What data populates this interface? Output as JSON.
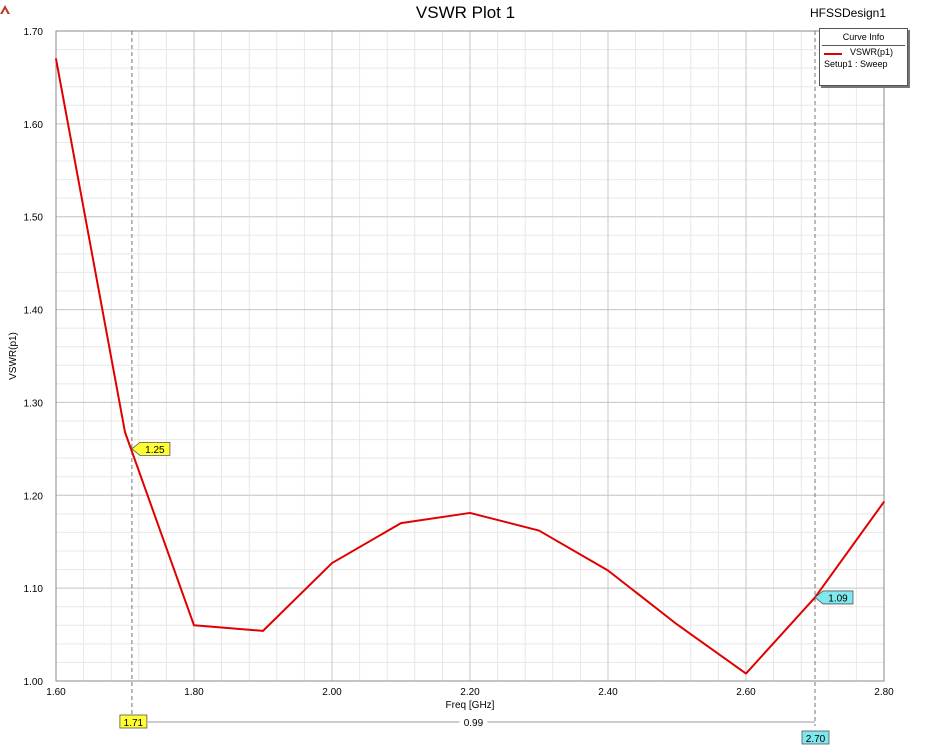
{
  "window": {
    "design_name": "HFSSDesign1",
    "logo_icon": "ansys-triangle-icon"
  },
  "legend": {
    "title": "Curve Info",
    "series_label": "VSWR(p1)",
    "setup_label": "Setup1 : Sweep",
    "series_color": "#e00000"
  },
  "chart_data": {
    "type": "line",
    "title": "VSWR Plot 1",
    "xlabel": "Freq [GHz]",
    "ylabel": "VSWR(p1)",
    "xlim": [
      1.6,
      2.8
    ],
    "ylim": [
      1.0,
      1.7
    ],
    "x_ticks": [
      "1.60",
      "1.80",
      "2.00",
      "2.20",
      "2.40",
      "2.60",
      "2.80"
    ],
    "y_ticks": [
      "1.00",
      "1.10",
      "1.20",
      "1.30",
      "1.40",
      "1.50",
      "1.60",
      "1.70"
    ],
    "grid": true,
    "legend_position": "top-right",
    "series": [
      {
        "name": "VSWR(p1)",
        "color": "#e00000",
        "x": [
          1.6,
          1.7,
          1.8,
          1.9,
          2.0,
          2.1,
          2.2,
          2.3,
          2.4,
          2.5,
          2.6,
          2.7,
          2.8
        ],
        "y": [
          1.67,
          1.268,
          1.06,
          1.054,
          1.127,
          1.17,
          1.181,
          1.162,
          1.119,
          1.061,
          1.008,
          1.09,
          1.193
        ]
      }
    ],
    "markers": [
      {
        "x": 1.71,
        "y": 1.25,
        "x_label": "1.71",
        "value_label": "1.25",
        "x_label_color": "#ffff33",
        "value_label_color": "#ffff33"
      },
      {
        "x": 2.7,
        "y": 1.09,
        "x_label": "2.70",
        "value_label": "1.09",
        "x_label_color": "#7fe8ee",
        "value_label_color": "#7fe8ee"
      }
    ],
    "marker_delta": "0.99"
  }
}
